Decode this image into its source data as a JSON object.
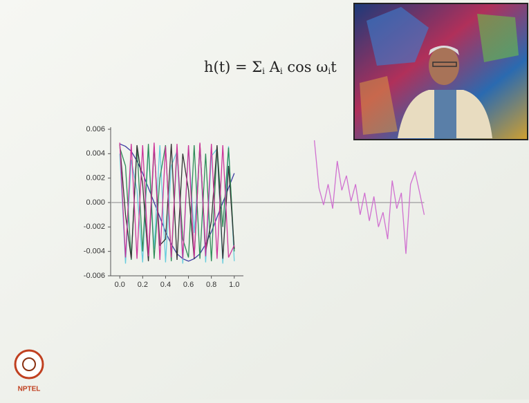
{
  "slide": {
    "formula": [
      "h(t) = Σ",
      "i",
      " A",
      "i",
      " cos ω",
      "i",
      "t"
    ],
    "logo_text": "NPTEL"
  },
  "chart_data": {
    "type": "line",
    "x": [
      0,
      0.05,
      0.1,
      0.15,
      0.2,
      0.25,
      0.3,
      0.35,
      0.4,
      0.45,
      0.5,
      0.55,
      0.6,
      0.65,
      0.7,
      0.75,
      0.8,
      0.85,
      0.9,
      0.95,
      1.0
    ],
    "series": [
      {
        "color": "#3a3aa0",
        "values": [
          0.0048,
          0.0046,
          0.0042,
          0.0034,
          0.0024,
          0.0012,
          0,
          -0.0012,
          -0.0024,
          -0.0034,
          -0.0042,
          -0.0046,
          -0.0048,
          -0.0046,
          -0.0042,
          -0.0034,
          -0.0024,
          -0.0012,
          0,
          0.0012,
          0.0024
        ]
      },
      {
        "color": "#66ccdd",
        "values": [
          0.004,
          -0.005,
          0.0035,
          0.001,
          -0.0049,
          0.0045,
          -0.0038,
          0.0047,
          -0.0049,
          0.003,
          0.0042,
          -0.005,
          0.0046,
          -0.0025,
          0.0045,
          -0.0049,
          0.0038,
          0.0044,
          -0.005,
          0.0046,
          -0.0048
        ]
      },
      {
        "color": "#2e8b57",
        "values": [
          0.0045,
          0.003,
          -0.0047,
          0.0046,
          -0.004,
          0.0048,
          -0.0046,
          0.002,
          0.0047,
          -0.0048,
          0.0044,
          -0.003,
          -0.0045,
          0.0047,
          -0.0046,
          0.004,
          -0.0048,
          0.0046,
          -0.002,
          0.0045,
          -0.004
        ]
      },
      {
        "color": "#333333",
        "values": [
          0.0048,
          -0.001,
          -0.0046,
          0.0047,
          0.0015,
          -0.0048,
          0.0046,
          -0.0035,
          -0.003,
          0.0048,
          -0.0047,
          0.004,
          0.001,
          -0.0046,
          0.0048,
          -0.004,
          -0.0015,
          0.0047,
          -0.0046,
          0.003,
          -0.0038
        ]
      },
      {
        "color": "#cc3399",
        "values": [
          0.0049,
          -0.0045,
          0.0048,
          -0.0046,
          0.0047,
          -0.0044,
          0.0049,
          -0.0047,
          0.0046,
          -0.0045,
          0.0048,
          -0.0046,
          0.0047,
          -0.0045,
          0.0049,
          -0.0044,
          0.0048,
          -0.0046,
          0.0047,
          -0.0045,
          -0.0035
        ]
      },
      {
        "color": "#d070d0",
        "x": [
          1.7,
          1.74,
          1.78,
          1.82,
          1.86,
          1.9,
          1.94,
          1.98,
          2.02,
          2.06,
          2.1,
          2.14,
          2.18,
          2.22,
          2.26,
          2.3,
          2.34,
          2.38,
          2.42,
          2.46,
          2.5,
          2.54,
          2.58,
          2.62,
          2.66
        ],
        "values": [
          0.0051,
          0.0012,
          -0.0002,
          0.0015,
          -0.0005,
          0.0034,
          0.001,
          0.0022,
          0.0001,
          0.0015,
          -0.001,
          0.0008,
          -0.0015,
          0.0005,
          -0.002,
          -0.0008,
          -0.003,
          0.0018,
          -0.0005,
          0.0008,
          -0.0042,
          0.0015,
          0.0025,
          0.0008,
          -0.001
        ]
      }
    ],
    "xlim": [
      -0.08,
      1.08
    ],
    "ylim": [
      -0.006,
      0.006
    ],
    "xticks": [
      {
        "value": 0,
        "label": "0.0"
      },
      0.2,
      0.4,
      0.6,
      0.8,
      {
        "value": 1,
        "label": "1.0"
      }
    ],
    "yticks": [
      -0.006,
      -0.004,
      -0.002,
      {
        "value": 0,
        "label": "0.000"
      },
      0.002,
      0.004,
      0.006
    ]
  }
}
